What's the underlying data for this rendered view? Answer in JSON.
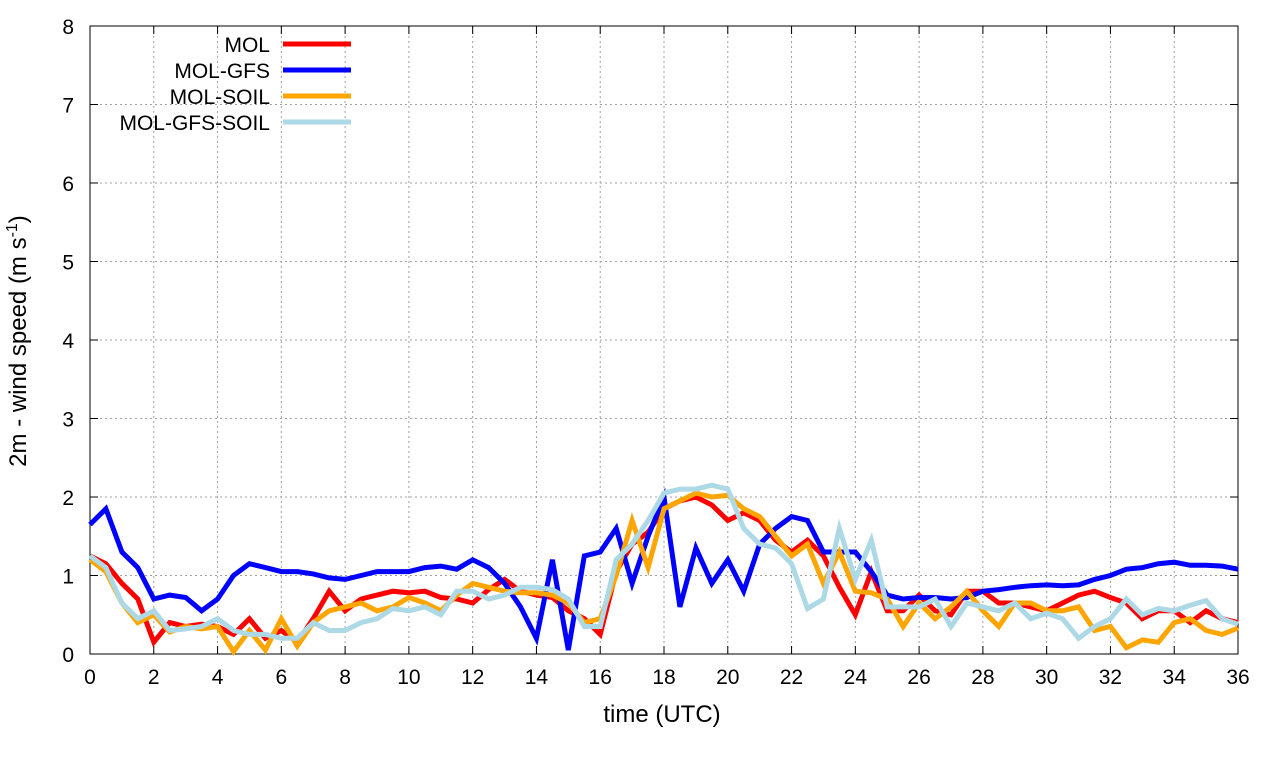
{
  "chart_data": {
    "type": "line",
    "title": "",
    "xlabel": "time (UTC)",
    "ylabel_main": "2m - wind speed  (m s",
    "ylabel_sup": "-1",
    "ylabel_close": ")",
    "xlim": [
      0,
      36
    ],
    "ylim": [
      0,
      8
    ],
    "xticks": [
      "0",
      "2",
      "4",
      "6",
      "8",
      "10",
      "12",
      "14",
      "16",
      "18",
      "20",
      "22",
      "24",
      "26",
      "28",
      "30",
      "32",
      "34",
      "36"
    ],
    "yticks": [
      "0",
      "1",
      "2",
      "3",
      "4",
      "5",
      "6",
      "7",
      "8"
    ],
    "grid": true,
    "legend_position": "top-left",
    "x": [
      0,
      0.5,
      1,
      1.5,
      2,
      2.5,
      3,
      3.5,
      4,
      4.5,
      5,
      5.5,
      6,
      6.5,
      7,
      7.5,
      8,
      8.5,
      9,
      9.5,
      10,
      10.5,
      11,
      11.5,
      12,
      12.5,
      13,
      13.5,
      14,
      14.5,
      15,
      15.5,
      16,
      16.5,
      17,
      17.5,
      18,
      18.5,
      19,
      19.5,
      20,
      20.5,
      21,
      21.5,
      22,
      22.5,
      23,
      23.5,
      24,
      24.5,
      25,
      25.5,
      26,
      26.5,
      27,
      27.5,
      28,
      28.5,
      29,
      29.5,
      30,
      30.5,
      31,
      31.5,
      32,
      32.5,
      33,
      33.5,
      34,
      34.5,
      35,
      35.5,
      36
    ],
    "series": [
      {
        "name": "MOL",
        "color": "#ff0000",
        "values": [
          1.25,
          1.15,
          0.9,
          0.7,
          0.15,
          0.4,
          0.35,
          0.38,
          0.35,
          0.25,
          0.45,
          0.2,
          0.3,
          0.15,
          0.45,
          0.8,
          0.55,
          0.7,
          0.75,
          0.8,
          0.78,
          0.8,
          0.72,
          0.7,
          0.65,
          0.82,
          0.95,
          0.8,
          0.75,
          0.72,
          0.55,
          0.45,
          0.25,
          1.05,
          1.4,
          1.55,
          1.85,
          1.95,
          2.0,
          1.9,
          1.7,
          1.8,
          1.7,
          1.45,
          1.3,
          1.45,
          1.25,
          0.85,
          0.5,
          1.05,
          0.55,
          0.55,
          0.75,
          0.55,
          0.5,
          0.8,
          0.8,
          0.65,
          0.65,
          0.6,
          0.55,
          0.65,
          0.75,
          0.8,
          0.72,
          0.65,
          0.45,
          0.55,
          0.55,
          0.4,
          0.55,
          0.45,
          0.4
        ]
      },
      {
        "name": "MOL-GFS",
        "color": "#0000ff",
        "values": [
          1.65,
          1.85,
          1.3,
          1.1,
          0.7,
          0.75,
          0.72,
          0.55,
          0.7,
          1.0,
          1.15,
          1.1,
          1.05,
          1.05,
          1.02,
          0.97,
          0.95,
          1.0,
          1.05,
          1.05,
          1.05,
          1.1,
          1.12,
          1.08,
          1.2,
          1.1,
          0.9,
          0.6,
          0.2,
          1.2,
          0.05,
          1.25,
          1.3,
          1.6,
          0.9,
          1.5,
          2.0,
          0.6,
          1.35,
          0.9,
          1.2,
          0.8,
          1.4,
          1.6,
          1.75,
          1.7,
          1.3,
          1.3,
          1.3,
          1.05,
          0.75,
          0.7,
          0.72,
          0.72,
          0.7,
          0.72,
          0.8,
          0.82,
          0.85,
          0.87,
          0.88,
          0.87,
          0.88,
          0.95,
          1.0,
          1.08,
          1.1,
          1.15,
          1.17,
          1.13,
          1.13,
          1.12,
          1.08
        ]
      },
      {
        "name": "MOL-SOIL",
        "color": "#ffa500",
        "values": [
          1.2,
          1.05,
          0.65,
          0.4,
          0.5,
          0.28,
          0.35,
          0.32,
          0.35,
          0.03,
          0.3,
          0.05,
          0.45,
          0.1,
          0.4,
          0.55,
          0.6,
          0.65,
          0.55,
          0.6,
          0.72,
          0.65,
          0.55,
          0.75,
          0.9,
          0.85,
          0.8,
          0.78,
          0.78,
          0.75,
          0.65,
          0.4,
          0.45,
          1.0,
          1.7,
          1.1,
          1.85,
          1.95,
          2.05,
          2.0,
          2.02,
          1.85,
          1.75,
          1.5,
          1.25,
          1.4,
          0.9,
          1.3,
          0.8,
          0.78,
          0.7,
          0.35,
          0.65,
          0.45,
          0.6,
          0.8,
          0.55,
          0.35,
          0.65,
          0.65,
          0.55,
          0.55,
          0.6,
          0.3,
          0.35,
          0.08,
          0.18,
          0.15,
          0.4,
          0.45,
          0.3,
          0.25,
          0.33
        ]
      },
      {
        "name": "MOL-GFS-SOIL",
        "color": "#add8e6",
        "values": [
          1.25,
          1.1,
          0.65,
          0.45,
          0.55,
          0.3,
          0.32,
          0.35,
          0.45,
          0.3,
          0.25,
          0.25,
          0.2,
          0.2,
          0.4,
          0.3,
          0.3,
          0.4,
          0.45,
          0.58,
          0.55,
          0.6,
          0.5,
          0.8,
          0.8,
          0.7,
          0.75,
          0.85,
          0.85,
          0.82,
          0.7,
          0.35,
          0.35,
          1.2,
          1.4,
          1.7,
          2.05,
          2.1,
          2.1,
          2.15,
          2.1,
          1.6,
          1.4,
          1.35,
          1.15,
          0.58,
          0.7,
          1.6,
          0.95,
          1.45,
          0.6,
          0.6,
          0.6,
          0.7,
          0.35,
          0.65,
          0.6,
          0.55,
          0.65,
          0.45,
          0.52,
          0.45,
          0.2,
          0.35,
          0.45,
          0.7,
          0.5,
          0.58,
          0.55,
          0.62,
          0.68,
          0.45,
          0.38
        ]
      }
    ]
  }
}
